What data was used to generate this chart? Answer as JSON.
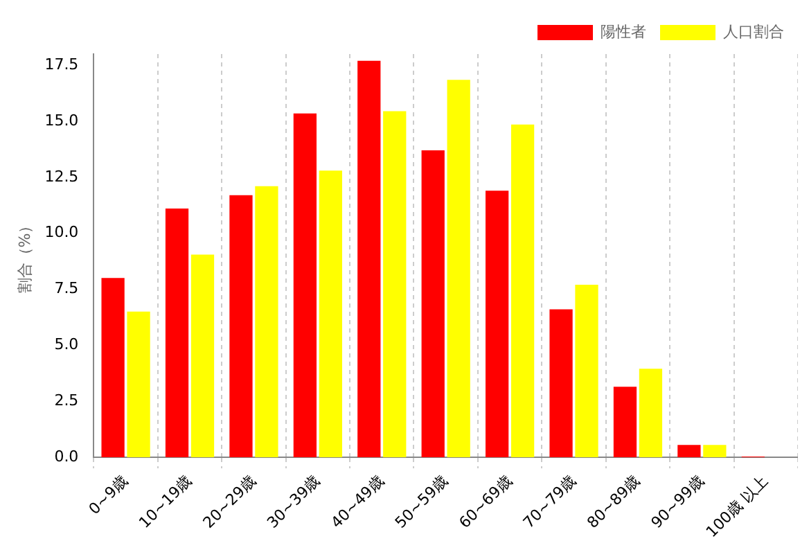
{
  "chart_data": {
    "type": "bar",
    "ylabel": "割合（%）",
    "categories": [
      "0~9歳",
      "10~19歳",
      "20~29歳",
      "30~39歳",
      "40~49歳",
      "50~59歳",
      "60~69歳",
      "70~79歳",
      "80~89歳",
      "90~99歳",
      "100歳 以上"
    ],
    "series": [
      {
        "name": "陽性者",
        "color": "#ff0000",
        "values": [
          8.0,
          11.1,
          11.7,
          15.35,
          17.7,
          13.7,
          11.9,
          6.6,
          3.15,
          0.55,
          0.03
        ]
      },
      {
        "name": "人口割合",
        "color": "#ffff00",
        "values": [
          6.5,
          9.05,
          12.1,
          12.8,
          15.45,
          16.85,
          14.85,
          7.7,
          3.95,
          0.55,
          0.0
        ]
      }
    ],
    "ylim": [
      0,
      18
    ],
    "yticks": [
      {
        "value": 0,
        "label": "0.0"
      },
      {
        "value": 2.5,
        "label": "2.5"
      },
      {
        "value": 5,
        "label": "5.0"
      },
      {
        "value": 7.5,
        "label": "7.5"
      },
      {
        "value": 10,
        "label": "10.0"
      },
      {
        "value": 12.5,
        "label": "12.5"
      },
      {
        "value": 15,
        "label": "15.0"
      },
      {
        "value": 17.5,
        "label": "17.5"
      }
    ],
    "grid": "x",
    "legend": "top right"
  }
}
